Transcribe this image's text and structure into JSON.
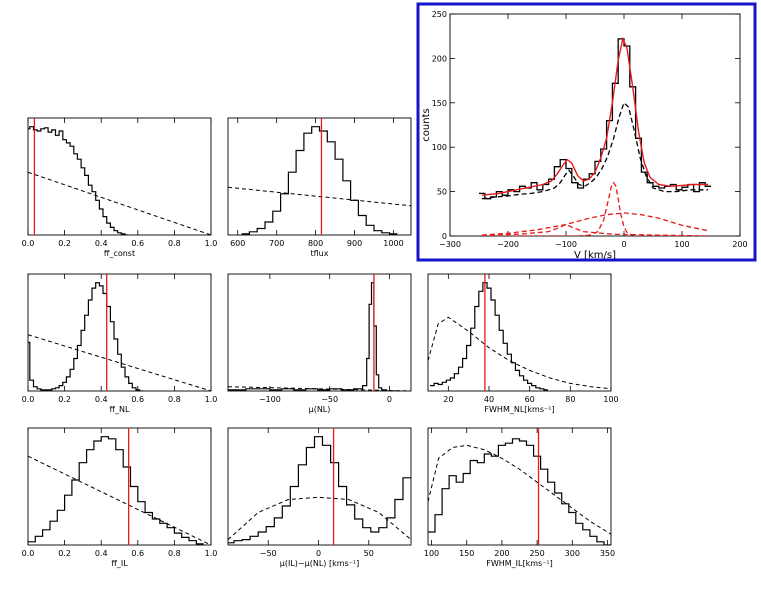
{
  "chart_data": [
    {
      "type": "histogram",
      "xlabel": "ff_const",
      "xlim": [
        0,
        1
      ],
      "xticks": [
        0,
        0.2,
        0.4,
        0.6,
        0.8,
        1
      ],
      "xtick_labels": [
        "0.0",
        "0.2",
        "0.4",
        "0.6",
        "0.8",
        "1.0"
      ],
      "ylim": [
        0,
        1.08
      ],
      "histogram": {
        "x": [
          0.0,
          0.02,
          0.04,
          0.06,
          0.08,
          0.1,
          0.12,
          0.14,
          0.16,
          0.18,
          0.2,
          0.22,
          0.24,
          0.26,
          0.28,
          0.3,
          0.32,
          0.34,
          0.36,
          0.38,
          0.4,
          0.42,
          0.44,
          0.46,
          0.48,
          0.5,
          0.52,
          0.54
        ],
        "y": [
          0.98,
          1.0,
          0.97,
          0.96,
          0.98,
          0.99,
          0.95,
          0.97,
          0.92,
          0.96,
          0.88,
          0.85,
          0.82,
          0.75,
          0.7,
          0.62,
          0.55,
          0.46,
          0.4,
          0.32,
          0.24,
          0.17,
          0.11,
          0.07,
          0.04,
          0.02,
          0.01,
          0.0
        ]
      },
      "prior": {
        "x": [
          0,
          1
        ],
        "y": [
          0.58,
          0.0
        ]
      },
      "marker": 0.035
    },
    {
      "type": "histogram",
      "xlabel": "tflux",
      "xlim": [
        575,
        1045
      ],
      "xticks": [
        600,
        700,
        800,
        900,
        1000
      ],
      "xtick_labels": [
        "600",
        "700",
        "800",
        "900",
        "1000"
      ],
      "ylim": [
        0,
        1.08
      ],
      "histogram": {
        "x": [
          620,
          640,
          660,
          680,
          700,
          720,
          740,
          760,
          780,
          800,
          820,
          840,
          860,
          880,
          900,
          920,
          940,
          960,
          980,
          1000
        ],
        "y": [
          0.01,
          0.03,
          0.06,
          0.12,
          0.22,
          0.38,
          0.58,
          0.78,
          0.94,
          1.0,
          0.96,
          0.86,
          0.7,
          0.5,
          0.32,
          0.18,
          0.09,
          0.04,
          0.02,
          0.01
        ]
      },
      "prior": {
        "x": [
          575,
          1045
        ],
        "y": [
          0.44,
          0.27
        ]
      },
      "marker": 815
    },
    {
      "type": "histogram",
      "xlabel": "ff_NL",
      "xlim": [
        0,
        1
      ],
      "xticks": [
        0,
        0.2,
        0.4,
        0.6,
        0.8,
        1
      ],
      "xtick_labels": [
        "0.0",
        "0.2",
        "0.4",
        "0.6",
        "0.8",
        "1.0"
      ],
      "ylim": [
        0,
        1.08
      ],
      "histogram": {
        "x": [
          0.0,
          0.02,
          0.04,
          0.06,
          0.08,
          0.1,
          0.12,
          0.14,
          0.16,
          0.18,
          0.2,
          0.22,
          0.24,
          0.26,
          0.28,
          0.3,
          0.32,
          0.34,
          0.36,
          0.38,
          0.4,
          0.42,
          0.44,
          0.46,
          0.48,
          0.5,
          0.52,
          0.54,
          0.56,
          0.58,
          0.6,
          0.62
        ],
        "y": [
          0.45,
          0.1,
          0.04,
          0.02,
          0.01,
          0.01,
          0.01,
          0.02,
          0.03,
          0.05,
          0.08,
          0.13,
          0.2,
          0.3,
          0.42,
          0.56,
          0.7,
          0.84,
          0.95,
          1.0,
          0.97,
          0.9,
          0.78,
          0.64,
          0.48,
          0.34,
          0.22,
          0.13,
          0.07,
          0.03,
          0.01,
          0.0
        ]
      },
      "prior": {
        "x": [
          0,
          1
        ],
        "y": [
          0.52,
          0.0
        ]
      },
      "marker": 0.43
    },
    {
      "type": "histogram",
      "xlabel": "μ(NL)",
      "xlim": [
        -135,
        18
      ],
      "xticks": [
        -100,
        -50,
        0
      ],
      "xtick_labels": [
        "−100",
        "−50",
        "0"
      ],
      "ylim": [
        0,
        1.08
      ],
      "histogram": {
        "x": [
          -135,
          -125,
          -115,
          -105,
          -95,
          -85,
          -75,
          -65,
          -55,
          -45,
          -35,
          -25,
          -20,
          -18,
          -16,
          -14,
          -12,
          -10,
          -8,
          -5,
          0
        ],
        "y": [
          0.01,
          0.01,
          0.02,
          0.02,
          0.01,
          0.02,
          0.01,
          0.02,
          0.01,
          0.02,
          0.01,
          0.02,
          0.05,
          0.3,
          0.8,
          1.0,
          0.6,
          0.15,
          0.03,
          0.01,
          0.0
        ]
      },
      "prior": {
        "x": [
          -135,
          18
        ],
        "y": [
          0.04,
          0.0
        ]
      },
      "marker": -13
    },
    {
      "type": "histogram",
      "xlabel": "FWHM_NL[kms⁻¹]",
      "xlim": [
        10,
        100
      ],
      "xticks": [
        20,
        40,
        60,
        80,
        100
      ],
      "xtick_labels": [
        "20",
        "40",
        "60",
        "80",
        "100"
      ],
      "ylim": [
        0,
        1.08
      ],
      "histogram": {
        "x": [
          12,
          14,
          16,
          18,
          20,
          22,
          24,
          26,
          28,
          30,
          32,
          34,
          36,
          38,
          40,
          42,
          44,
          46,
          48,
          50,
          52,
          54,
          56,
          58,
          60,
          62,
          64,
          66,
          68
        ],
        "y": [
          0.05,
          0.07,
          0.06,
          0.08,
          0.1,
          0.12,
          0.16,
          0.22,
          0.3,
          0.42,
          0.58,
          0.78,
          0.92,
          1.0,
          0.95,
          0.84,
          0.7,
          0.56,
          0.44,
          0.34,
          0.26,
          0.19,
          0.14,
          0.1,
          0.07,
          0.05,
          0.03,
          0.02,
          0.01
        ]
      },
      "prior": {
        "x": [
          10,
          15,
          20,
          30,
          40,
          50,
          60,
          70,
          80,
          90,
          100
        ],
        "y": [
          0.28,
          0.62,
          0.68,
          0.55,
          0.4,
          0.28,
          0.19,
          0.12,
          0.07,
          0.04,
          0.02
        ]
      },
      "marker": 38
    },
    {
      "type": "histogram",
      "xlabel": "ff_IL",
      "xlim": [
        0,
        1
      ],
      "xticks": [
        0,
        0.2,
        0.4,
        0.6,
        0.8,
        1
      ],
      "xtick_labels": [
        "0.0",
        "0.2",
        "0.4",
        "0.6",
        "0.8",
        "1.0"
      ],
      "ylim": [
        0,
        1.08
      ],
      "histogram": {
        "x": [
          0.02,
          0.06,
          0.1,
          0.14,
          0.18,
          0.22,
          0.26,
          0.3,
          0.34,
          0.38,
          0.42,
          0.46,
          0.5,
          0.54,
          0.58,
          0.62,
          0.66,
          0.7,
          0.74,
          0.78,
          0.82,
          0.86,
          0.9,
          0.94
        ],
        "y": [
          0.03,
          0.08,
          0.14,
          0.22,
          0.32,
          0.46,
          0.6,
          0.76,
          0.88,
          0.96,
          1.0,
          0.98,
          0.88,
          0.72,
          0.54,
          0.4,
          0.3,
          0.24,
          0.2,
          0.16,
          0.11,
          0.07,
          0.04,
          0.01
        ]
      },
      "prior": {
        "x": [
          0,
          1
        ],
        "y": [
          0.82,
          0.0
        ]
      },
      "marker": 0.55
    },
    {
      "type": "histogram",
      "xlabel": "μ(IL)−μ(NL)  [kms⁻¹]",
      "xlim": [
        -90,
        92
      ],
      "xticks": [
        -50,
        0,
        50
      ],
      "xtick_labels": [
        "−50",
        "0",
        "50"
      ],
      "ylim": [
        0,
        1.08
      ],
      "histogram": {
        "x": [
          -88,
          -80,
          -72,
          -64,
          -56,
          -48,
          -40,
          -32,
          -24,
          -16,
          -8,
          0,
          8,
          16,
          24,
          32,
          40,
          48,
          56,
          64,
          72,
          80,
          88
        ],
        "y": [
          0.02,
          0.04,
          0.05,
          0.08,
          0.12,
          0.17,
          0.25,
          0.36,
          0.54,
          0.74,
          0.9,
          1.0,
          0.92,
          0.76,
          0.54,
          0.37,
          0.24,
          0.16,
          0.12,
          0.16,
          0.25,
          0.42,
          0.62
        ]
      },
      "prior": {
        "x": [
          -90,
          -60,
          -30,
          0,
          30,
          60,
          92
        ],
        "y": [
          0.05,
          0.3,
          0.42,
          0.44,
          0.42,
          0.3,
          0.05
        ]
      },
      "marker": 15
    },
    {
      "type": "histogram",
      "xlabel": "FWHM_IL[kms⁻¹]",
      "xlim": [
        95,
        355
      ],
      "xticks": [
        100,
        150,
        200,
        250,
        300,
        350
      ],
      "xtick_labels": [
        "100",
        "150",
        "200",
        "250",
        "300",
        "350"
      ],
      "ylim": [
        0,
        1.08
      ],
      "histogram": {
        "x": [
          100,
          110,
          120,
          130,
          140,
          150,
          160,
          170,
          180,
          190,
          200,
          210,
          220,
          230,
          240,
          250,
          260,
          270,
          280,
          290,
          300,
          310,
          320,
          330,
          340,
          350
        ],
        "y": [
          0.12,
          0.28,
          0.52,
          0.64,
          0.58,
          0.66,
          0.78,
          0.76,
          0.84,
          0.82,
          0.92,
          0.94,
          0.98,
          0.96,
          0.92,
          0.82,
          0.7,
          0.58,
          0.48,
          0.38,
          0.3,
          0.2,
          0.14,
          0.08,
          0.03,
          0.0
        ]
      },
      "prior": {
        "x": [
          95,
          110,
          130,
          150,
          175,
          200,
          225,
          250,
          275,
          300,
          325,
          355
        ],
        "y": [
          0.4,
          0.8,
          0.9,
          0.92,
          0.88,
          0.8,
          0.7,
          0.58,
          0.46,
          0.34,
          0.22,
          0.1
        ]
      },
      "marker": 252
    },
    {
      "type": "line",
      "xlabel": "V [km/s]",
      "ylabel": "counts",
      "xlim": [
        -300,
        200
      ],
      "ylim": [
        0,
        250
      ],
      "xticks": [
        -300,
        -200,
        -100,
        0,
        100,
        200
      ],
      "xtick_labels": [
        "−300",
        "−200",
        "−100",
        "0",
        "100",
        "200"
      ],
      "yticks": [
        0,
        50,
        100,
        150,
        200,
        250
      ],
      "ytick_labels": [
        "0",
        "50",
        "100",
        "150",
        "200",
        "250"
      ],
      "series": [
        {
          "role": "data",
          "color": "#000000",
          "style": "step",
          "x": [
            -245,
            -235,
            -225,
            -215,
            -205,
            -195,
            -185,
            -175,
            -165,
            -155,
            -145,
            -135,
            -125,
            -115,
            -105,
            -95,
            -85,
            -75,
            -65,
            -55,
            -45,
            -35,
            -25,
            -15,
            -5,
            5,
            15,
            25,
            35,
            45,
            55,
            65,
            75,
            85,
            95,
            105,
            115,
            125,
            135,
            145
          ],
          "y": [
            48,
            42,
            44,
            50,
            46,
            52,
            50,
            56,
            54,
            60,
            52,
            58,
            64,
            78,
            86,
            76,
            60,
            54,
            64,
            70,
            84,
            98,
            130,
            172,
            222,
            214,
            168,
            110,
            72,
            60,
            56,
            54,
            56,
            58,
            52,
            55,
            58,
            50,
            60,
            56
          ]
        },
        {
          "role": "fit",
          "color": "#e41a1c",
          "style": "solid",
          "x": [
            -245,
            -230,
            -215,
            -200,
            -185,
            -170,
            -155,
            -140,
            -125,
            -115,
            -105,
            -98,
            -90,
            -80,
            -70,
            -60,
            -50,
            -40,
            -30,
            -20,
            -10,
            -2,
            5,
            15,
            25,
            35,
            45,
            60,
            80,
            100,
            120,
            145
          ],
          "y": [
            46,
            47,
            48,
            50,
            52,
            54,
            56,
            58,
            62,
            70,
            80,
            86,
            82,
            68,
            62,
            64,
            72,
            88,
            110,
            150,
            198,
            222,
            212,
            168,
            118,
            82,
            66,
            58,
            56,
            57,
            58,
            58
          ]
        },
        {
          "role": "broad component",
          "color": "#000000",
          "style": "dashed",
          "x": [
            -245,
            -220,
            -200,
            -180,
            -160,
            -140,
            -120,
            -110,
            -100,
            -95,
            -88,
            -78,
            -68,
            -58,
            -48,
            -38,
            -28,
            -18,
            -8,
            0,
            8,
            18,
            28,
            38,
            50,
            70,
            90,
            115,
            145
          ],
          "y": [
            42,
            44,
            45,
            47,
            48,
            50,
            54,
            60,
            70,
            74,
            68,
            58,
            56,
            60,
            66,
            76,
            90,
            110,
            135,
            150,
            145,
            118,
            88,
            68,
            54,
            50,
            50,
            52,
            52
          ]
        },
        {
          "role": "narrow component",
          "color": "#e41a1c",
          "style": "dashed",
          "x": [
            -245,
            -80,
            -60,
            -45,
            -35,
            -28,
            -22,
            -18,
            -14,
            -10,
            -6,
            0,
            6,
            20,
            145
          ],
          "y": [
            0,
            0,
            1,
            5,
            18,
            38,
            55,
            60,
            56,
            42,
            26,
            10,
            3,
            0,
            0
          ]
        },
        {
          "role": "intermediate component",
          "color": "#e41a1c",
          "style": "dashed",
          "x": [
            -245,
            -200,
            -150,
            -100,
            -60,
            -30,
            0,
            30,
            60,
            100,
            145
          ],
          "y": [
            1,
            3,
            7,
            13,
            20,
            24,
            26,
            24,
            20,
            12,
            6
          ]
        },
        {
          "role": "weak component",
          "color": "#e41a1c",
          "style": "dashed",
          "x": [
            -245,
            -180,
            -130,
            -110,
            -100,
            -90,
            -70,
            -20,
            60,
            145
          ],
          "y": [
            1,
            2,
            5,
            10,
            13,
            10,
            5,
            2,
            1,
            0
          ]
        }
      ]
    }
  ]
}
